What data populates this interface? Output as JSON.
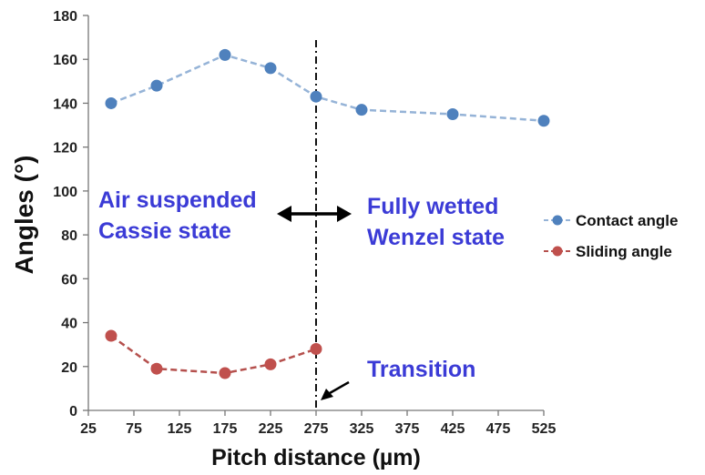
{
  "chart_data": {
    "type": "line",
    "xlabel": "Pitch distance (µm)",
    "ylabel": "Angles (°)",
    "xlim": [
      25,
      525
    ],
    "ylim": [
      0,
      180
    ],
    "x_ticks": [
      25,
      75,
      125,
      175,
      225,
      275,
      325,
      375,
      425,
      475,
      525
    ],
    "y_ticks": [
      0,
      20,
      40,
      60,
      80,
      100,
      120,
      140,
      160,
      180
    ],
    "grid": false,
    "legend_position": "right",
    "series": [
      {
        "name": "Contact angle",
        "color": "#4f81bd",
        "line_color": "#95b3d7",
        "style": "dashed",
        "x": [
          50,
          100,
          175,
          225,
          275,
          325,
          425,
          525
        ],
        "y": [
          140,
          148,
          162,
          156,
          143,
          137,
          135,
          132
        ]
      },
      {
        "name": "Sliding angle",
        "color": "#c0504d",
        "line_color": "#b5504d",
        "style": "dashed",
        "x": [
          50,
          100,
          175,
          225,
          275
        ],
        "y": [
          34,
          19,
          17,
          21,
          28
        ]
      }
    ],
    "transition_x": 275,
    "annotations": {
      "left_state_line1": "Air suspended",
      "left_state_line2": "Cassie state",
      "right_state_line1": "Fully wetted",
      "right_state_line2": "Wenzel state",
      "transition": "Transition"
    },
    "annotation_color": "#3b3bd6"
  }
}
